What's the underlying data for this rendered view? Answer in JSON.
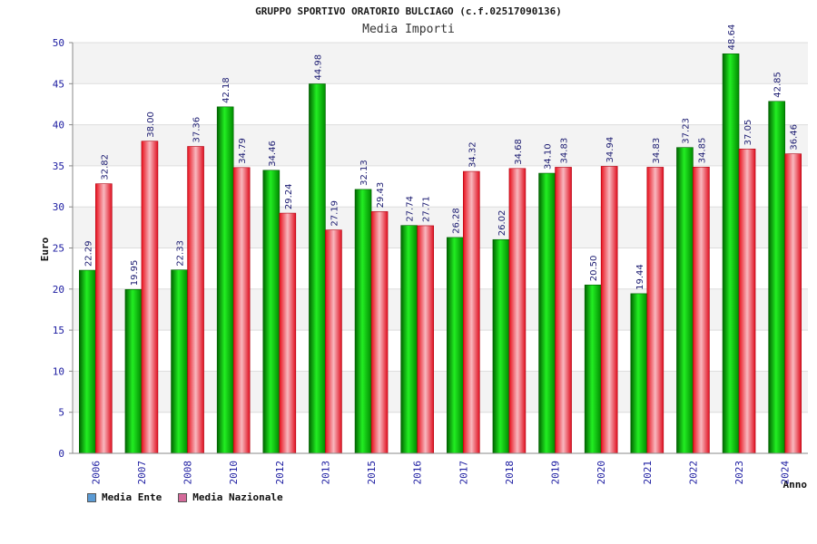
{
  "chart_data": {
    "type": "bar",
    "title": "GRUPPO SPORTIVO ORATORIO BULCIAGO (c.f.02517090136)",
    "subtitle": "Media Importi",
    "xlabel": "Anno",
    "ylabel": "Euro",
    "ylim": [
      0,
      50
    ],
    "yticks": [
      "0",
      "5",
      "10",
      "15",
      "20",
      "25",
      "30",
      "35",
      "40",
      "45",
      "50"
    ],
    "grid": true,
    "legend_position": "bottom-left",
    "categories": [
      "2006",
      "2007",
      "2008",
      "2010",
      "2012",
      "2013",
      "2015",
      "2016",
      "2017",
      "2018",
      "2019",
      "2020",
      "2021",
      "2022",
      "2023",
      "2024"
    ],
    "series": [
      {
        "name": "Media Ente",
        "color": "#00c000",
        "legend_color": "#5b9bd5",
        "values": [
          22.29,
          19.95,
          22.33,
          42.18,
          34.46,
          44.98,
          32.13,
          27.74,
          26.28,
          26.02,
          34.1,
          20.5,
          19.44,
          37.23,
          48.64,
          42.85
        ],
        "labels": [
          "22.29",
          "19.95",
          "22.33",
          "42.18",
          "34.46",
          "44.98",
          "32.13",
          "27.74",
          "26.28",
          "26.02",
          "34.10",
          "20.50",
          "19.44",
          "37.23",
          "48.64",
          "42.85"
        ]
      },
      {
        "name": "Media Nazionale",
        "color": "#e01020",
        "legend_color": "#d46a9a",
        "values": [
          32.82,
          38.0,
          37.36,
          34.79,
          29.24,
          27.19,
          29.43,
          27.71,
          34.32,
          34.68,
          34.83,
          34.94,
          34.83,
          34.85,
          37.05,
          36.46
        ],
        "labels": [
          "32.82",
          "38.00",
          "37.36",
          "34.79",
          "29.24",
          "27.19",
          "29.43",
          "27.71",
          "34.32",
          "34.68",
          "34.83",
          "34.94",
          "34.83",
          "34.85",
          "37.05",
          "36.46"
        ]
      }
    ]
  }
}
